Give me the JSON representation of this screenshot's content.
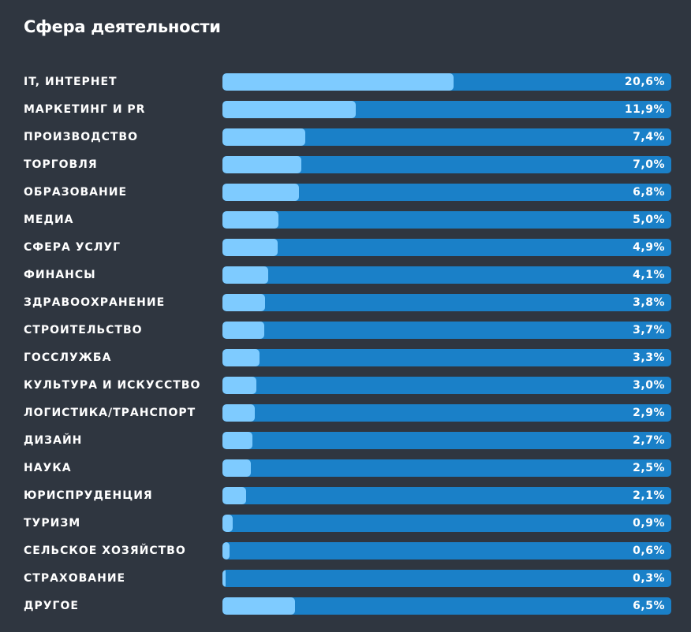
{
  "chart_data": {
    "type": "bar",
    "orientation": "horizontal",
    "title": "Сфера деятельности",
    "categories": [
      "IT, ИНТЕРНЕТ",
      "МАРКЕТИНГ И PR",
      "ПРОИЗВОДСТВО",
      "ТОРГОВЛЯ",
      "ОБРАЗОВАНИЕ",
      "МЕДИА",
      "СФЕРА УСЛУГ",
      "ФИНАНСЫ",
      "ЗДРАВООХРАНЕНИЕ",
      "СТРОИТЕЛЬСТВО",
      "ГОССЛУЖБА",
      "КУЛЬТУРА И ИСКУССТВО",
      "ЛОГИСТИКА/ТРАНСПОРТ",
      "ДИЗАЙН",
      "НАУКА",
      "ЮРИСПРУДЕНЦИЯ",
      "ТУРИЗМ",
      "СЕЛЬСКОЕ ХОЗЯЙСТВО",
      "СТРАХОВАНИЕ",
      "ДРУГОЕ"
    ],
    "values": [
      20.6,
      11.9,
      7.4,
      7.0,
      6.8,
      5.0,
      4.9,
      4.1,
      3.8,
      3.7,
      3.3,
      3.0,
      2.9,
      2.7,
      2.5,
      2.1,
      0.9,
      0.6,
      0.3,
      6.5
    ],
    "value_labels": [
      "20,6%",
      "11,9%",
      "7,4%",
      "7,0%",
      "6,8%",
      "5,0%",
      "4,9%",
      "4,1%",
      "3,8%",
      "3,7%",
      "3,3%",
      "3,0%",
      "2,9%",
      "2,7%",
      "2,5%",
      "2,1%",
      "0,9%",
      "0,6%",
      "0,3%",
      "6,5%"
    ],
    "xlim": [
      0,
      40
    ],
    "grid": false,
    "colors": {
      "background": "#2f3640",
      "track": "#1a80c8",
      "fill": "#7ecbff",
      "text": "#ffffff"
    }
  }
}
